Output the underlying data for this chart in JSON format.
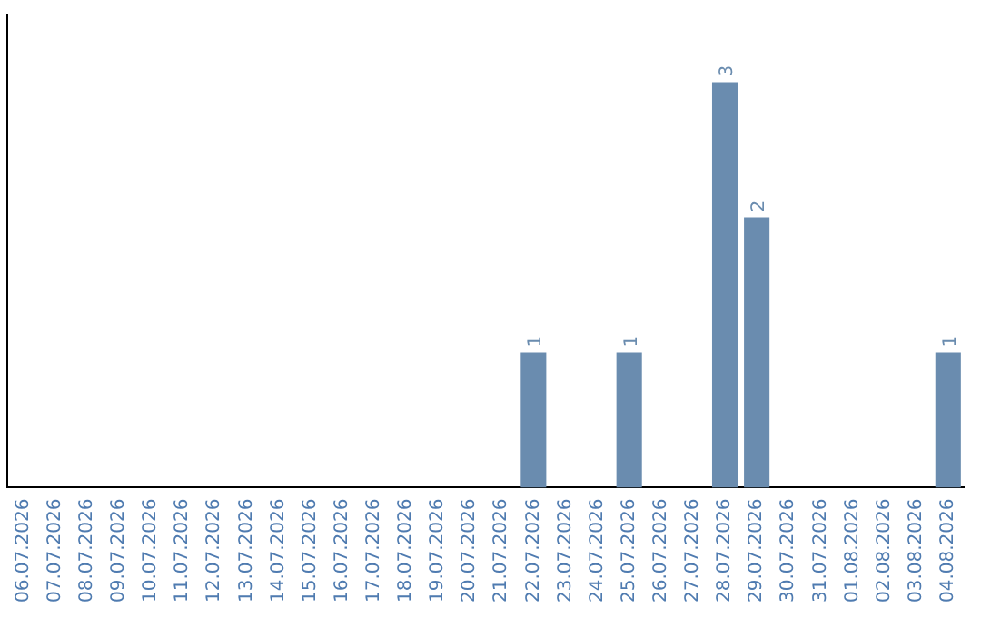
{
  "chart_data": {
    "type": "bar",
    "color": "#6a8caf",
    "tick_labels": "x",
    "grid": false,
    "legend": false,
    "categories": [
      "06.07.2026",
      "07.07.2026",
      "08.07.2026",
      "09.07.2026",
      "10.07.2026",
      "11.07.2026",
      "12.07.2026",
      "13.07.2026",
      "14.07.2026",
      "15.07.2026",
      "16.07.2026",
      "17.07.2026",
      "18.07.2026",
      "19.07.2026",
      "20.07.2026",
      "21.07.2026",
      "22.07.2026",
      "23.07.2026",
      "24.07.2026",
      "25.07.2026",
      "26.07.2026",
      "27.07.2026",
      "28.07.2026",
      "29.07.2026",
      "30.07.2026",
      "31.07.2026",
      "01.08.2026",
      "02.08.2026",
      "03.08.2026",
      "04.08.2026"
    ],
    "values": [
      null,
      null,
      null,
      null,
      null,
      null,
      null,
      null,
      null,
      null,
      null,
      null,
      null,
      null,
      null,
      null,
      1,
      null,
      null,
      1,
      null,
      null,
      3,
      2,
      null,
      null,
      null,
      null,
      null,
      1
    ],
    "data_labels": true
  }
}
